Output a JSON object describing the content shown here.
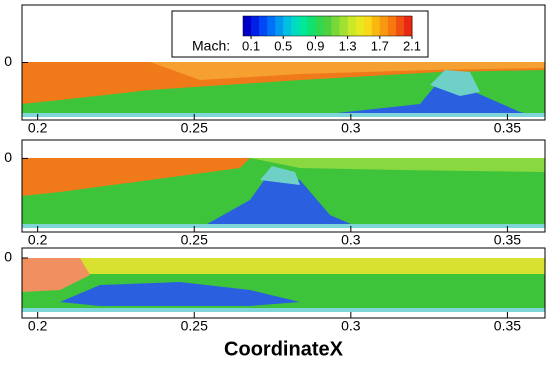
{
  "chart_data": {
    "type": "contour",
    "xlabel": "CoordinateX",
    "xlim": [
      0.195,
      0.362
    ],
    "xticks": [
      0.2,
      0.25,
      0.3,
      0.35
    ],
    "panels": [
      {
        "ylim": [
          -0.01,
          0.01
        ],
        "yticks": [
          0
        ]
      },
      {
        "ylim": [
          -0.008,
          0.002
        ],
        "yticks": [
          0
        ]
      },
      {
        "ylim": [
          -0.012,
          0.002
        ],
        "yticks": [
          0
        ]
      }
    ],
    "colorbar": {
      "label": "Mach:",
      "lim": [
        0,
        2.1
      ],
      "ticks": [
        0.1,
        0.5,
        0.9,
        1.3,
        1.7,
        2.1
      ],
      "colors": [
        "#0000c8",
        "#0020e6",
        "#0048f5",
        "#0070f8",
        "#0098f0",
        "#00bfe0",
        "#00dcc0",
        "#00e89a",
        "#10e070",
        "#30d850",
        "#50d040",
        "#78d838",
        "#a0e030",
        "#c8e828",
        "#e8e820",
        "#f8d818",
        "#f8b810",
        "#f89810",
        "#f87810",
        "#f05010",
        "#e82810"
      ]
    }
  }
}
